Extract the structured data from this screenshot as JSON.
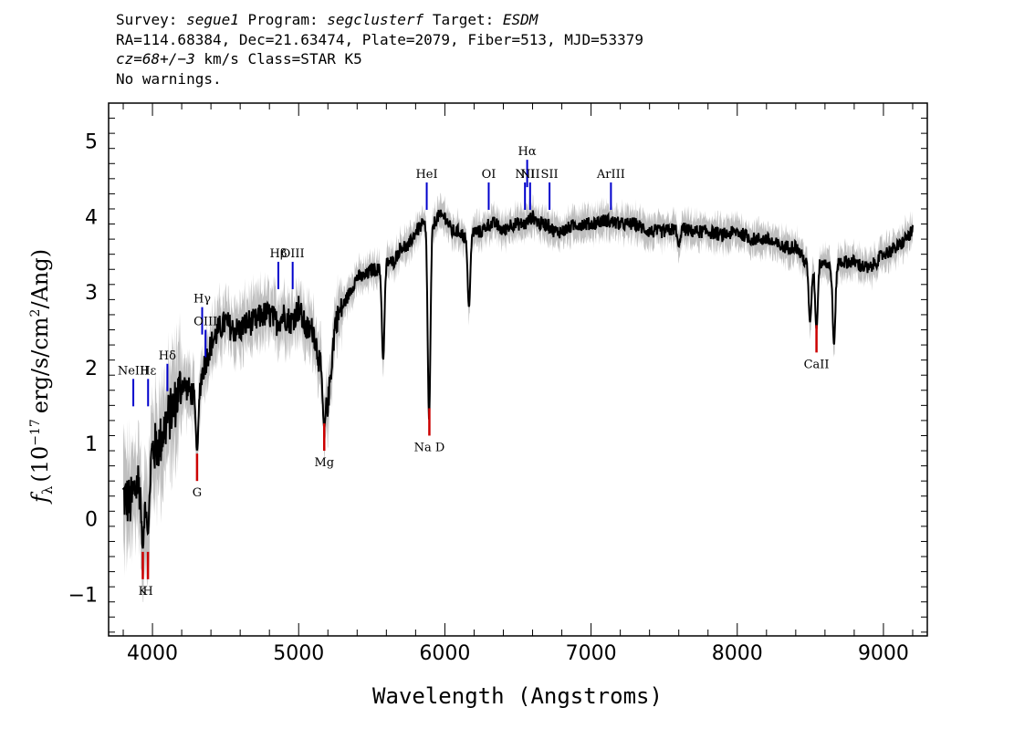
{
  "header": {
    "survey_label": "Survey:",
    "survey": "segue1",
    "program_label": "Program:",
    "program": "segclusterf",
    "target_label": "Target:",
    "target": "ESDM",
    "line2": "RA=114.68384, Dec=21.63474, Plate=2079, Fiber=513, MJD=53379",
    "cz": "cz=68+/−3",
    "cz_suffix": "km/s Class=STAR K5",
    "line4": "No warnings."
  },
  "chart_data": {
    "type": "line",
    "xlabel": "Wavelength (Angstroms)",
    "ylabel_prefix": "f",
    "ylabel_sub": "λ",
    "ylabel_main": "(10",
    "ylabel_exp": "−17",
    "ylabel_units": "erg/s/cm",
    "ylabel_sq": "2",
    "ylabel_tail": "/Ang)",
    "xlim": [
      3700,
      9300
    ],
    "ylim": [
      -1.55,
      5.5
    ],
    "xticks": [
      4000,
      5000,
      6000,
      7000,
      8000,
      9000
    ],
    "yticks": [
      -1,
      0,
      1,
      2,
      3,
      4,
      5
    ],
    "ytick_labels": [
      "−1",
      "0",
      "1",
      "2",
      "3",
      "4",
      "5"
    ],
    "colors": {
      "flux": "#000000",
      "error": "#bfbfbf",
      "emission": "#0000cc",
      "absorption": "#cc0000",
      "frame": "#000000"
    },
    "series": [
      {
        "x": [
          3800,
          3850,
          3900,
          3950,
          4000,
          4050,
          4100,
          4150,
          4200,
          4250,
          4300,
          4350,
          4400,
          4450,
          4500,
          4550,
          4600,
          4650,
          4700,
          4750,
          4800,
          4850,
          4900,
          4950,
          5000,
          5050,
          5100,
          5150,
          5200,
          5250,
          5300,
          5350,
          5400,
          5450,
          5500,
          5550,
          5600,
          5650,
          5700,
          5750,
          5800,
          5850,
          5900,
          5950,
          6000,
          6050,
          6100,
          6150,
          6200,
          6250,
          6300,
          6350,
          6400,
          6450,
          6500,
          6550,
          6600,
          6650,
          6700,
          6750,
          6800,
          6900,
          7000,
          7100,
          7200,
          7300,
          7400,
          7500,
          7600,
          7700,
          7800,
          7900,
          8000,
          8100,
          8200,
          8300,
          8400,
          8500,
          8550,
          8600,
          8650,
          8700,
          8800,
          8900,
          9000,
          9100,
          9150,
          9200
        ],
        "y": [
          0.3,
          0.2,
          0.5,
          0.4,
          0.9,
          1.0,
          1.3,
          1.5,
          1.8,
          1.7,
          1.6,
          2.0,
          2.3,
          2.5,
          2.6,
          2.5,
          2.5,
          2.6,
          2.6,
          2.7,
          2.7,
          2.6,
          2.7,
          2.6,
          2.8,
          2.5,
          2.5,
          2.0,
          1.5,
          2.6,
          2.8,
          3.0,
          3.2,
          3.2,
          3.3,
          3.3,
          3.4,
          3.4,
          3.6,
          3.6,
          3.8,
          3.9,
          3.8,
          4.0,
          4.0,
          3.8,
          3.8,
          3.7,
          3.8,
          3.8,
          3.9,
          3.9,
          3.8,
          3.9,
          3.9,
          3.9,
          4.0,
          3.9,
          3.9,
          3.8,
          3.8,
          3.9,
          3.9,
          3.95,
          3.9,
          3.9,
          3.8,
          3.8,
          3.85,
          3.8,
          3.8,
          3.75,
          3.8,
          3.7,
          3.7,
          3.6,
          3.6,
          3.3,
          3.4,
          3.4,
          3.3,
          3.4,
          3.4,
          3.3,
          3.5,
          3.6,
          3.7,
          3.8
        ]
      }
    ],
    "dips": [
      {
        "x": 3934,
        "y": -0.4
      },
      {
        "x": 3969,
        "y": -0.2
      },
      {
        "x": 4305,
        "y": 0.9
      },
      {
        "x": 5175,
        "y": 1.2
      },
      {
        "x": 5578,
        "y": 2.1
      },
      {
        "x": 5892,
        "y": 1.3
      },
      {
        "x": 6165,
        "y": 2.8
      },
      {
        "x": 7600,
        "y": 3.6
      },
      {
        "x": 8498,
        "y": 2.6
      },
      {
        "x": 8542,
        "y": 2.5
      },
      {
        "x": 8662,
        "y": 2.3
      }
    ],
    "lines": [
      {
        "label": "Hε",
        "x": 3970,
        "y": 1.85,
        "kind": "emission"
      },
      {
        "label": "NeIII",
        "x": 3869,
        "y": 1.85,
        "kind": "emission"
      },
      {
        "label": "Hδ",
        "x": 4102,
        "y": 2.05,
        "kind": "emission"
      },
      {
        "label": "Hγ",
        "x": 4340,
        "y": 2.8,
        "kind": "emission"
      },
      {
        "label": "OIII",
        "x": 4363,
        "y": 2.5,
        "kind": "emission"
      },
      {
        "label": "Hβ",
        "x": 4861,
        "y": 3.4,
        "kind": "emission"
      },
      {
        "label": "OIII",
        "x": 4959,
        "y": 3.4,
        "kind": "emission"
      },
      {
        "label": "HeI",
        "x": 5876,
        "y": 4.45,
        "kind": "emission"
      },
      {
        "label": "OI",
        "x": 6300,
        "y": 4.45,
        "kind": "emission"
      },
      {
        "label": "NII",
        "x": 6548,
        "y": 4.45,
        "kind": "emission"
      },
      {
        "label": "Hα",
        "x": 6563,
        "y": 4.75,
        "kind": "emission"
      },
      {
        "label": "NII",
        "x": 6583,
        "y": 4.45,
        "kind": "emission"
      },
      {
        "label": "SII",
        "x": 6716,
        "y": 4.45,
        "kind": "emission"
      },
      {
        "label": "ArIII",
        "x": 7136,
        "y": 4.45,
        "kind": "emission"
      },
      {
        "label": "K",
        "x": 3934,
        "y": -0.8,
        "kind": "absorption"
      },
      {
        "label": "H",
        "x": 3969,
        "y": -0.8,
        "kind": "absorption"
      },
      {
        "label": "G",
        "x": 4305,
        "y": 0.5,
        "kind": "absorption"
      },
      {
        "label": "Mg",
        "x": 5175,
        "y": 0.9,
        "kind": "absorption"
      },
      {
        "label": "Na D",
        "x": 5894,
        "y": 1.1,
        "kind": "absorption"
      },
      {
        "label": "CaII",
        "x": 8542,
        "y": 2.2,
        "kind": "absorption"
      }
    ]
  }
}
